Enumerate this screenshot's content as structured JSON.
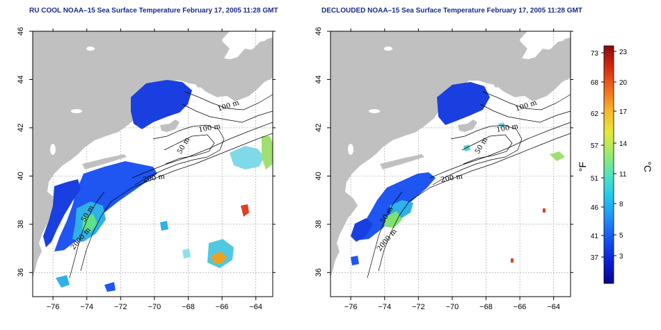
{
  "panels": [
    {
      "id": "left",
      "title": "RU COOL NOAA–15 Sea Surface Temperature February 17, 2005 11:28 GMT",
      "isobath_labels": [
        "100 m",
        "100 m",
        "50 m",
        "200 m",
        "50 m",
        "2000 m"
      ]
    },
    {
      "id": "right",
      "title": "DECLOUDED NOAA–15 Sea Surface Temperature February 17, 2005 11:28 GMT",
      "isobath_labels": [
        "100 m",
        "100 m",
        "50 m",
        "200 m",
        "50 m",
        "2000 m"
      ]
    }
  ],
  "axes": {
    "x_ticks": [
      "−76",
      "−74",
      "−72",
      "−70",
      "−68",
      "−66",
      "−64"
    ],
    "y_ticks": [
      "36",
      "38",
      "40",
      "42",
      "44",
      "46"
    ],
    "x_range": [
      -77.2,
      -63
    ],
    "y_range": [
      35,
      46
    ]
  },
  "colorbar": {
    "f_ticks": [
      "73",
      "68",
      "62",
      "57",
      "51",
      "46",
      "41",
      "37"
    ],
    "c_ticks": [
      "23",
      "20",
      "17",
      "14",
      "11",
      "8",
      "5",
      "3"
    ],
    "f_unit": "°F",
    "c_unit": "°C",
    "colors": [
      "#05068a",
      "#0a1fd6",
      "#1650f0",
      "#1f8ef5",
      "#22c7ee",
      "#4fe3c0",
      "#9cea6a",
      "#e6e83a",
      "#f7b52b",
      "#f06a1c",
      "#d62a13",
      "#8b0a0a"
    ]
  },
  "colors": {
    "land": "#c0c0c0",
    "water": "#ffffff",
    "cold": "#1a3fe0",
    "title": "#1c2a8a"
  }
}
